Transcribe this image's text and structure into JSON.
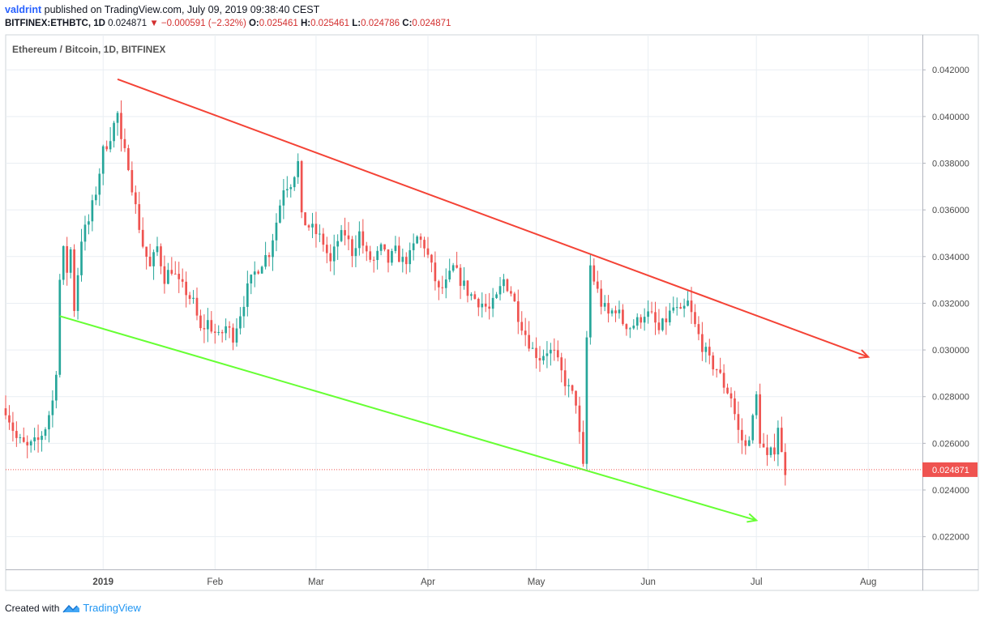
{
  "header": {
    "author": "valdrint",
    "published_text": "published on TradingView.com, July 09, 2019 09:38:40 CEST",
    "symbol_line": {
      "symbol": "BITFINEX:ETHBTC, 1D",
      "last": "0.024871",
      "arrow": "▼",
      "change": "−0.000591 (−2.32%)",
      "o_label": "O:",
      "o_value": "0.025461",
      "h_label": "H:",
      "h_value": "0.025461",
      "l_label": "L:",
      "l_value": "0.024786",
      "c_label": "C:",
      "c_value": "0.024871"
    }
  },
  "footer": {
    "created_with": "Created with",
    "brand": "TradingView"
  },
  "colors": {
    "up": "#26a69a",
    "down": "#ef5350",
    "resistance": "#f44336",
    "support": "#66ff33",
    "price_label_bg": "#ef5350",
    "grid": "#e9eef3",
    "axis_text": "#4a4a4a"
  },
  "chart_data": {
    "type": "candlestick",
    "title": "Ethereum / Bitcoin, 1D, BITFINEX",
    "x_axis": {
      "ticks": [
        {
          "label": "2019",
          "date": "2019-01-01",
          "bold": true
        },
        {
          "label": "Feb",
          "date": "2019-02-01"
        },
        {
          "label": "Mar",
          "date": "2019-03-01"
        },
        {
          "label": "Apr",
          "date": "2019-04-01"
        },
        {
          "label": "May",
          "date": "2019-05-01"
        },
        {
          "label": "Jun",
          "date": "2019-06-01"
        },
        {
          "label": "Jul",
          "date": "2019-07-01"
        },
        {
          "label": "Aug",
          "date": "2019-08-01"
        }
      ],
      "range": [
        "2018-12-05",
        "2019-08-16"
      ]
    },
    "y_axis": {
      "ticks": [
        "0.042000",
        "0.040000",
        "0.038000",
        "0.036000",
        "0.034000",
        "0.032000",
        "0.030000",
        "0.028000",
        "0.026000",
        "0.024000",
        "0.022000"
      ],
      "range": [
        0.0206,
        0.0435
      ],
      "position": "right"
    },
    "current_price": {
      "value": 0.024871,
      "label": "0.024871"
    },
    "grid": true,
    "close_series": [
      [
        "2018-12-05",
        0.0275
      ],
      [
        "2018-12-08",
        0.0262
      ],
      [
        "2018-12-11",
        0.0258
      ],
      [
        "2018-12-14",
        0.0261
      ],
      [
        "2018-12-16",
        0.0267
      ],
      [
        "2018-12-18",
        0.0278
      ],
      [
        "2018-12-19",
        0.0292
      ],
      [
        "2018-12-20",
        0.033
      ],
      [
        "2018-12-21",
        0.0342
      ],
      [
        "2018-12-22",
        0.0334
      ],
      [
        "2018-12-23",
        0.0343
      ],
      [
        "2018-12-24",
        0.0318
      ],
      [
        "2018-12-26",
        0.0348
      ],
      [
        "2018-12-28",
        0.0355
      ],
      [
        "2018-12-30",
        0.0368
      ],
      [
        "2019-01-01",
        0.0385
      ],
      [
        "2019-01-03",
        0.0392
      ],
      [
        "2019-01-05",
        0.0401
      ],
      [
        "2019-01-06",
        0.0388
      ],
      [
        "2019-01-08",
        0.038
      ],
      [
        "2019-01-10",
        0.0361
      ],
      [
        "2019-01-12",
        0.0345
      ],
      [
        "2019-01-14",
        0.0335
      ],
      [
        "2019-01-16",
        0.0344
      ],
      [
        "2019-01-18",
        0.0331
      ],
      [
        "2019-01-20",
        0.0335
      ],
      [
        "2019-01-22",
        0.0328
      ],
      [
        "2019-01-24",
        0.0325
      ],
      [
        "2019-01-26",
        0.032
      ],
      [
        "2019-01-28",
        0.0308
      ],
      [
        "2019-01-30",
        0.0312
      ],
      [
        "2019-02-02",
        0.0305
      ],
      [
        "2019-02-04",
        0.031
      ],
      [
        "2019-02-06",
        0.0306
      ],
      [
        "2019-02-08",
        0.0316
      ],
      [
        "2019-02-10",
        0.0326
      ],
      [
        "2019-02-12",
        0.0333
      ],
      [
        "2019-02-14",
        0.0338
      ],
      [
        "2019-02-16",
        0.0342
      ],
      [
        "2019-02-18",
        0.0355
      ],
      [
        "2019-02-20",
        0.037
      ],
      [
        "2019-02-22",
        0.0372
      ],
      [
        "2019-02-24",
        0.038
      ],
      [
        "2019-02-25",
        0.0356
      ],
      [
        "2019-02-27",
        0.0353
      ],
      [
        "2019-03-01",
        0.035
      ],
      [
        "2019-03-03",
        0.0346
      ],
      [
        "2019-03-05",
        0.0337
      ],
      [
        "2019-03-07",
        0.0347
      ],
      [
        "2019-03-09",
        0.035
      ],
      [
        "2019-03-11",
        0.0342
      ],
      [
        "2019-03-13",
        0.035
      ],
      [
        "2019-03-15",
        0.034
      ],
      [
        "2019-03-17",
        0.0338
      ],
      [
        "2019-03-19",
        0.0343
      ],
      [
        "2019-03-21",
        0.0338
      ],
      [
        "2019-03-23",
        0.0342
      ],
      [
        "2019-03-25",
        0.0338
      ],
      [
        "2019-03-27",
        0.034
      ],
      [
        "2019-03-29",
        0.0348
      ],
      [
        "2019-03-31",
        0.0345
      ],
      [
        "2019-04-02",
        0.0335
      ],
      [
        "2019-04-04",
        0.0325
      ],
      [
        "2019-04-06",
        0.0328
      ],
      [
        "2019-04-08",
        0.0335
      ],
      [
        "2019-04-10",
        0.033
      ],
      [
        "2019-04-12",
        0.0325
      ],
      [
        "2019-04-14",
        0.0322
      ],
      [
        "2019-04-16",
        0.032
      ],
      [
        "2019-04-18",
        0.0317
      ],
      [
        "2019-04-20",
        0.0322
      ],
      [
        "2019-04-22",
        0.033
      ],
      [
        "2019-04-24",
        0.0325
      ],
      [
        "2019-04-26",
        0.0315
      ],
      [
        "2019-04-28",
        0.0307
      ],
      [
        "2019-04-30",
        0.03
      ],
      [
        "2019-05-02",
        0.0297
      ],
      [
        "2019-05-04",
        0.03
      ],
      [
        "2019-05-06",
        0.0298
      ],
      [
        "2019-05-08",
        0.029
      ],
      [
        "2019-05-10",
        0.0283
      ],
      [
        "2019-05-12",
        0.0278
      ],
      [
        "2019-05-13",
        0.0263
      ],
      [
        "2019-05-14",
        0.0249
      ],
      [
        "2019-05-15",
        0.0305
      ],
      [
        "2019-05-16",
        0.0336
      ],
      [
        "2019-05-17",
        0.033
      ],
      [
        "2019-05-19",
        0.032
      ],
      [
        "2019-05-21",
        0.0315
      ],
      [
        "2019-05-23",
        0.0318
      ],
      [
        "2019-05-25",
        0.0312
      ],
      [
        "2019-05-27",
        0.031
      ],
      [
        "2019-05-29",
        0.0312
      ],
      [
        "2019-05-31",
        0.0316
      ],
      [
        "2019-06-02",
        0.0314
      ],
      [
        "2019-06-04",
        0.0308
      ],
      [
        "2019-06-06",
        0.0313
      ],
      [
        "2019-06-08",
        0.0318
      ],
      [
        "2019-06-10",
        0.0315
      ],
      [
        "2019-06-12",
        0.032
      ],
      [
        "2019-06-14",
        0.031
      ],
      [
        "2019-06-16",
        0.0302
      ],
      [
        "2019-06-18",
        0.0295
      ],
      [
        "2019-06-20",
        0.0292
      ],
      [
        "2019-06-22",
        0.0285
      ],
      [
        "2019-06-24",
        0.028
      ],
      [
        "2019-06-26",
        0.0265
      ],
      [
        "2019-06-28",
        0.0258
      ],
      [
        "2019-06-30",
        0.027
      ],
      [
        "2019-07-01",
        0.028
      ],
      [
        "2019-07-02",
        0.0262
      ],
      [
        "2019-07-04",
        0.0253
      ],
      [
        "2019-07-06",
        0.0258
      ],
      [
        "2019-07-07",
        0.0268
      ],
      [
        "2019-07-08",
        0.0255
      ],
      [
        "2019-07-09",
        0.024871
      ]
    ],
    "annotations": [
      {
        "type": "trend-arrow",
        "role": "resistance",
        "color": "#f44336",
        "from": {
          "date": "2019-01-05",
          "value": 0.0416
        },
        "to": {
          "date": "2019-08-01",
          "value": 0.0297
        }
      },
      {
        "type": "trend-arrow",
        "role": "support",
        "color": "#66ff33",
        "from": {
          "date": "2018-12-20",
          "value": 0.03145
        },
        "to": {
          "date": "2019-07-01",
          "value": 0.0227
        }
      }
    ]
  }
}
